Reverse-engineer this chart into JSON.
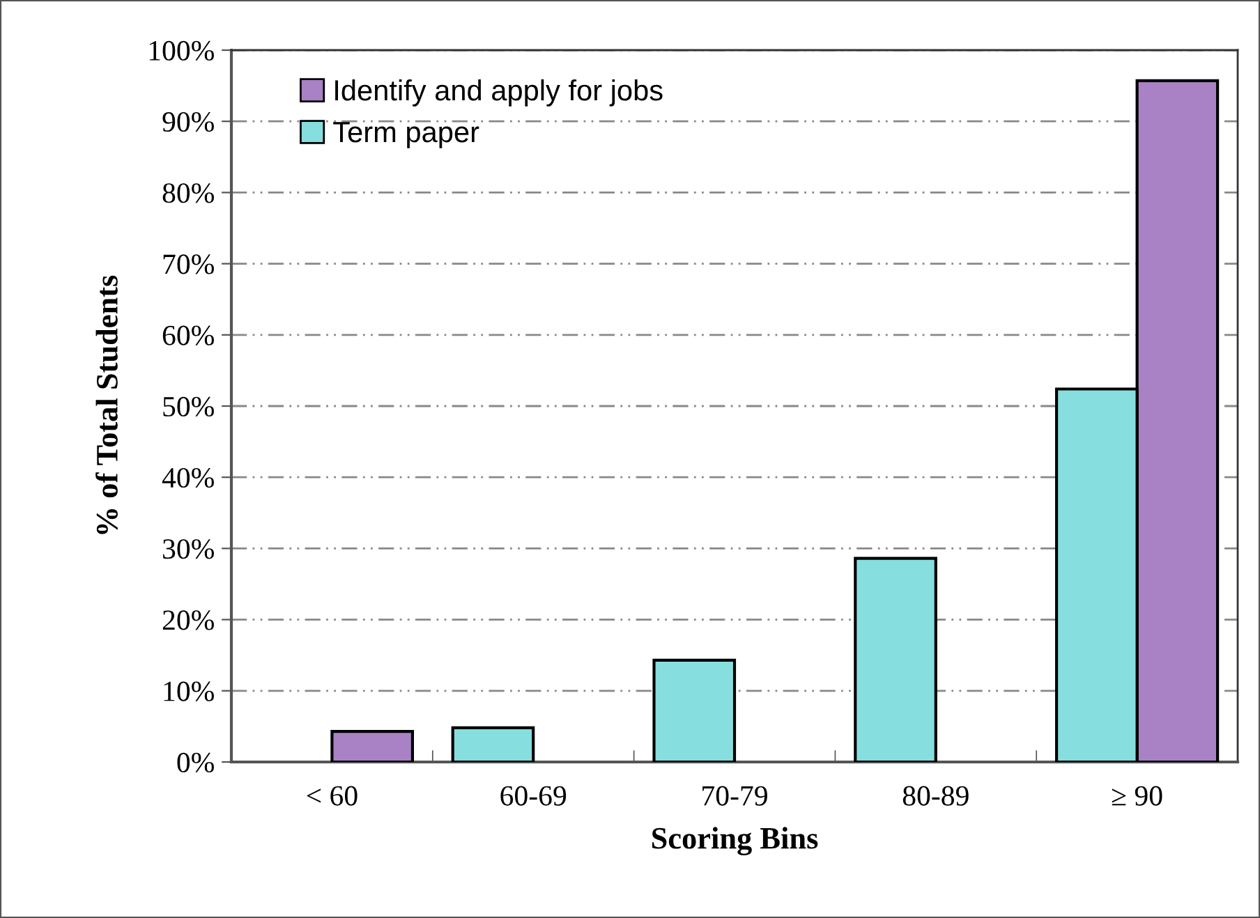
{
  "chart_data": {
    "type": "bar",
    "xlabel": "Scoring Bins",
    "ylabel": "% of Total Students",
    "categories": [
      "< 60",
      "60-69",
      "70-79",
      "80-89",
      "≥ 90"
    ],
    "series": [
      {
        "name": "Identify and apply for jobs",
        "color": "#a882c4",
        "values": [
          4.3,
          0,
          0,
          0,
          95.7
        ]
      },
      {
        "name": "Term paper",
        "color": "#86dede",
        "values": [
          0,
          4.8,
          14.3,
          28.6,
          52.4
        ]
      }
    ],
    "ylim": [
      0,
      100
    ],
    "yticks": [
      {
        "value": 0,
        "label": "0%"
      },
      {
        "value": 10,
        "label": "10%"
      },
      {
        "value": 20,
        "label": "20%"
      },
      {
        "value": 30,
        "label": "30%"
      },
      {
        "value": 40,
        "label": "40%"
      },
      {
        "value": 50,
        "label": "50%"
      },
      {
        "value": 60,
        "label": "60%"
      },
      {
        "value": 70,
        "label": "70%"
      },
      {
        "value": 80,
        "label": "80%"
      },
      {
        "value": 90,
        "label": "90%"
      },
      {
        "value": 100,
        "label": "100%"
      }
    ],
    "grid": "y",
    "legend": "top left"
  }
}
